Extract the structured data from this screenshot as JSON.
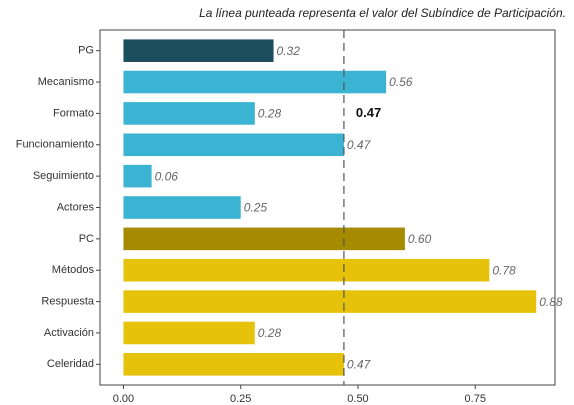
{
  "chart_data": {
    "type": "hbar",
    "title": "La línea punteada representa el valor del Subíndice de Participación.",
    "categories": [
      "PG",
      "Mecanismo",
      "Formato",
      "Funcionamiento",
      "Seguimiento",
      "Actores",
      "PC",
      "Métodos",
      "Respuesta",
      "Activación",
      "Celeridad"
    ],
    "values": [
      0.32,
      0.56,
      0.28,
      0.47,
      0.06,
      0.25,
      0.6,
      0.78,
      0.88,
      0.28,
      0.47
    ],
    "value_labels": [
      "0.32",
      "0.56",
      "0.28",
      "0.47",
      "0.06",
      "0.25",
      "0.60",
      "0.78",
      "0.88",
      "0.28",
      "0.47"
    ],
    "colors": [
      "#1d4e5e",
      "#3ab4d2",
      "#3ab4d2",
      "#3ab4d2",
      "#3ab4d2",
      "#3ab4d2",
      "#a68a00",
      "#e6c30a",
      "#e6c30a",
      "#e6c30a",
      "#e6c30a"
    ],
    "xlim": [
      -0.05,
      0.92
    ],
    "xticks": [
      {
        "value": 0,
        "label": "0.00"
      },
      0.25,
      {
        "value": 0.5,
        "label": "0.50"
      },
      0.75
    ],
    "reference_line": {
      "value": 0.47,
      "label": "0.47"
    }
  }
}
